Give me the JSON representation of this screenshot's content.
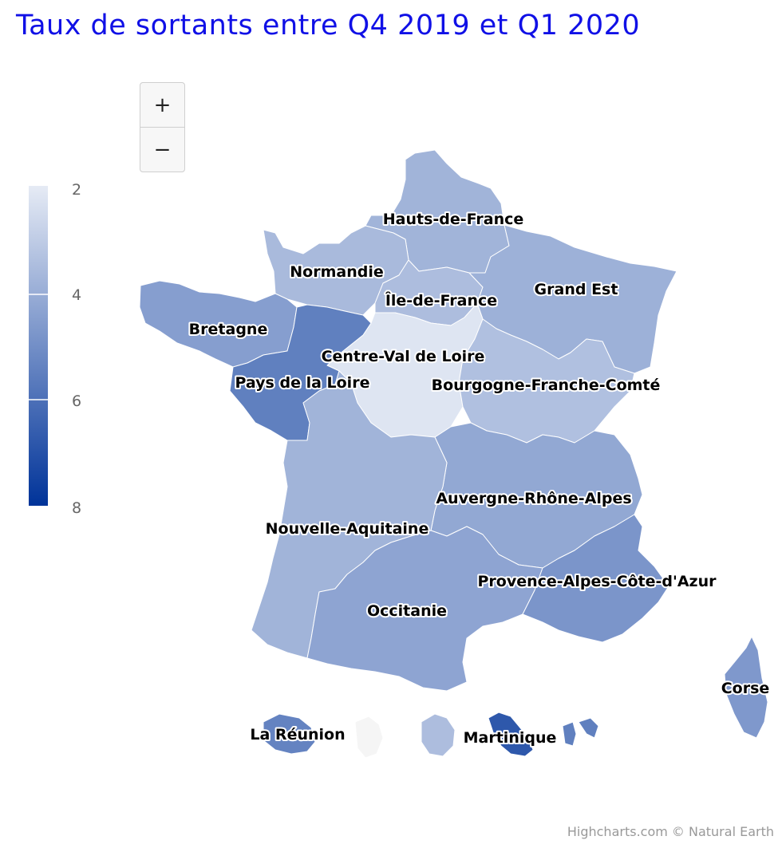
{
  "title": "Taux de sortants entre Q4 2019 et Q1 2020",
  "zoom": {
    "in_label": "+",
    "out_label": "−"
  },
  "legend": {
    "ticks": [
      "2",
      "4",
      "6",
      "8"
    ],
    "min": 2,
    "max": 8,
    "color_min": "#e6ebf5",
    "color_max": "#003399"
  },
  "chart_data": {
    "type": "choropleth",
    "title": "Taux de sortants entre Q4 2019 et Q1 2020",
    "value_range": [
      2,
      8
    ],
    "regions": [
      {
        "name": "Hauts-de-France",
        "value": 3.8
      },
      {
        "name": "Normandie",
        "value": 3.6
      },
      {
        "name": "Île-de-France",
        "value": 3.5
      },
      {
        "name": "Grand Est",
        "value": 3.9
      },
      {
        "name": "Bretagne",
        "value": 4.5
      },
      {
        "name": "Centre-Val de Loire",
        "value": 2.2
      },
      {
        "name": "Pays de la Loire",
        "value": 5.5
      },
      {
        "name": "Bourgogne-Franche-Comté",
        "value": 3.4
      },
      {
        "name": "Auvergne-Rhône-Alpes",
        "value": 4.2
      },
      {
        "name": "Nouvelle-Aquitaine",
        "value": 3.8
      },
      {
        "name": "Occitanie",
        "value": 4.3
      },
      {
        "name": "Provence-Alpes-Côte-d'Azur",
        "value": 4.8
      },
      {
        "name": "Corse",
        "value": 4.7
      },
      {
        "name": "La Réunion",
        "value": 5.4
      },
      {
        "name": "Martinique",
        "value": 6.8
      }
    ]
  },
  "credits": "Highcharts.com © Natural Earth"
}
